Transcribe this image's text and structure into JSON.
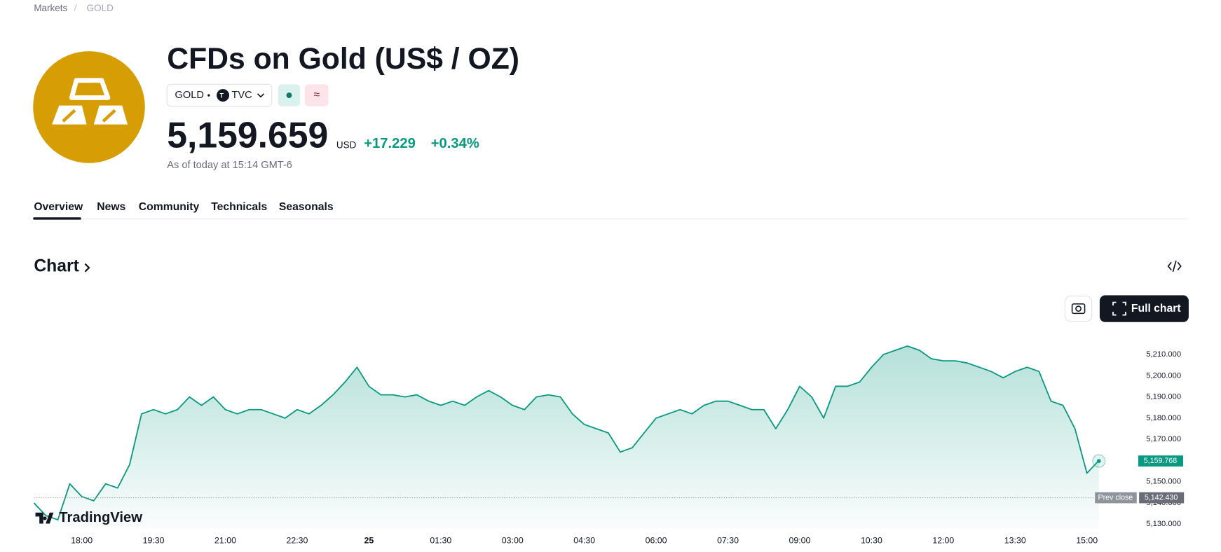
{
  "breadcrumb": [
    "Markets",
    "GOLD"
  ],
  "header": {
    "title": "CFDs on Gold (US$ / OZ)",
    "symbol": "GOLD",
    "exchange": "TVC",
    "price": "5,159.659",
    "currency": "USD",
    "change": "+17.229",
    "change_percent": "+0.34%",
    "as_of": "As of today at 15:14 GMT-6"
  },
  "tabs": [
    "Overview",
    "News",
    "Community",
    "Technicals",
    "Seasonals"
  ],
  "section_title": "Chart",
  "buttons": {
    "full_chart": "Full chart"
  },
  "chart_data": {
    "type": "area",
    "color": "#089981",
    "watermark": "TradingView",
    "categories": [
      null,
      null,
      null,
      null,
      "18:00",
      null,
      null,
      null,
      null,
      null,
      "19:30",
      null,
      null,
      null,
      null,
      null,
      "21:00",
      null,
      null,
      null,
      null,
      null,
      "22:30",
      null,
      null,
      null,
      null,
      null,
      "25",
      null,
      null,
      null,
      null,
      null,
      "01:30",
      null,
      null,
      null,
      null,
      null,
      "03:00",
      null,
      null,
      null,
      null,
      null,
      "04:30",
      null,
      null,
      null,
      null,
      null,
      "06:00",
      null,
      null,
      null,
      null,
      null,
      "07:30",
      null,
      null,
      null,
      null,
      null,
      "09:00",
      null,
      null,
      null,
      null,
      null,
      "10:30",
      null,
      null,
      null,
      null,
      null,
      "12:00",
      null,
      null,
      null,
      null,
      null,
      "13:30",
      null,
      null,
      null,
      null,
      null,
      "15:00",
      null
    ],
    "values": [
      5140,
      5134,
      5132,
      5149,
      5143,
      5141,
      5149,
      5147,
      5158,
      5182,
      5184,
      5182,
      5184,
      5190,
      5186,
      5190,
      5184,
      5182,
      5184,
      5184,
      5182,
      5180,
      5184,
      5182,
      5186,
      5191,
      5197,
      5204,
      5195,
      5191,
      5191,
      5190,
      5191,
      5188,
      5186,
      5188,
      5186,
      5190,
      5193,
      5190,
      5186,
      5184,
      5190,
      5191,
      5190,
      5182,
      5177,
      5175,
      5173,
      5164,
      5166,
      5173,
      5180,
      5182,
      5184,
      5182,
      5186,
      5188,
      5188,
      5186,
      5184,
      5184,
      5175,
      5184,
      5195,
      5190,
      5180,
      5195,
      5195,
      5197,
      5204,
      5210,
      5212,
      5214,
      5212,
      5208,
      5207,
      5207,
      5206,
      5204,
      5202,
      5199,
      5202,
      5204,
      5202,
      5188,
      5186,
      5175,
      5154,
      5160
    ],
    "ylim": [
      5128,
      5219
    ],
    "yticks": [
      {
        "value": 5130,
        "label": "5,130.000"
      },
      {
        "value": 5140,
        "label": "5,140.000"
      },
      {
        "value": 5150,
        "label": "5,150.000"
      },
      {
        "value": 5160,
        "label": "5,160.000"
      },
      {
        "value": 5170,
        "label": "5,170.000"
      },
      {
        "value": 5180,
        "label": "5,180.000"
      },
      {
        "value": 5190,
        "label": "5,190.000"
      },
      {
        "value": 5200,
        "label": "5,200.000"
      },
      {
        "value": 5210,
        "label": "5,210.000"
      }
    ],
    "last_price": {
      "value": 5159.768,
      "label": "5,159.768"
    },
    "prev_close": {
      "name": "Prev close",
      "value": 5142.43,
      "label": "5,142.430"
    }
  }
}
